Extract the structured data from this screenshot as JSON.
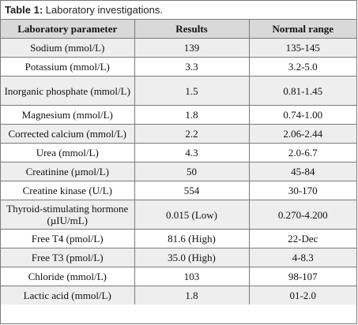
{
  "caption": {
    "label": "Table 1:",
    "text": " Laboratory investigations."
  },
  "table": {
    "headers": [
      "Laboratory parameter",
      "Results",
      "Normal range"
    ],
    "rows": [
      [
        "Sodium (mmol/L)",
        "139",
        "135-145"
      ],
      [
        "Potassium (mmol/L)",
        "3.3",
        "3.2-5.0"
      ],
      [
        "Inorganic phosphate (mmol/L)",
        "1.5",
        "0.81-1.45"
      ],
      [
        "Magnesium (mmol/L)",
        "1.8",
        "0.74-1.00"
      ],
      [
        "Corrected calcium (mmol/L)",
        "2.2",
        "2.06-2.44"
      ],
      [
        "Urea (mmol/L)",
        "4.3",
        "2.0-6.7"
      ],
      [
        "Creatinine (µmol/L)",
        "50",
        "45-84"
      ],
      [
        "Creatine kinase (U/L)",
        "554",
        "30-170"
      ],
      [
        "Thyroid-stimulating hormone (µIU/mL)",
        "0.015 (Low)",
        "0.270-4.200"
      ],
      [
        "Free T4 (pmol/L)",
        "81.6 (High)",
        "22-Dec"
      ],
      [
        "Free T3 (pmol/L)",
        "35.0 (High)",
        "4-8.3"
      ],
      [
        "Chloride (mmol/L)",
        "103",
        "98-107"
      ],
      [
        "Lactic acid (mmol/L)",
        "1.8",
        "01-2.0"
      ]
    ]
  }
}
